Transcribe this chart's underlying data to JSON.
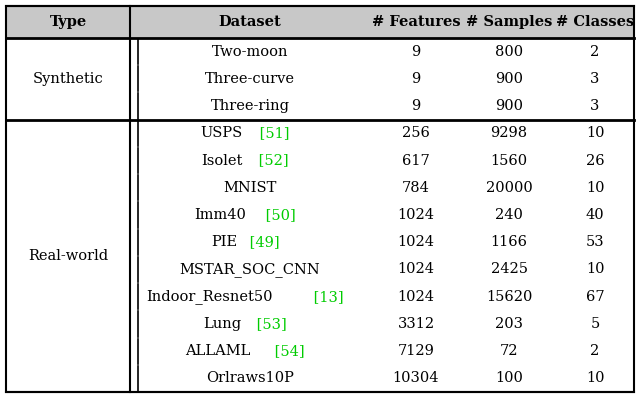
{
  "header": [
    "Type",
    "Dataset",
    "# Features",
    "# Samples",
    "# Classes"
  ],
  "synthetic_rows": [
    {
      "dataset": "Two-moon",
      "features": "9",
      "samples": "800",
      "classes": "2",
      "ref": ""
    },
    {
      "dataset": "Three-curve",
      "features": "9",
      "samples": "900",
      "classes": "3",
      "ref": ""
    },
    {
      "dataset": "Three-ring",
      "features": "9",
      "samples": "900",
      "classes": "3",
      "ref": ""
    }
  ],
  "realworld_rows": [
    {
      "dataset": "USPS",
      "features": "256",
      "samples": "9298",
      "classes": "10",
      "ref": "51"
    },
    {
      "dataset": "Isolet",
      "features": "617",
      "samples": "1560",
      "classes": "26",
      "ref": "52"
    },
    {
      "dataset": "MNIST",
      "features": "784",
      "samples": "20000",
      "classes": "10",
      "ref": ""
    },
    {
      "dataset": "Imm40",
      "features": "1024",
      "samples": "240",
      "classes": "40",
      "ref": "50"
    },
    {
      "dataset": "PIE",
      "features": "1024",
      "samples": "1166",
      "classes": "53",
      "ref": "49"
    },
    {
      "dataset": "MSTAR_SOC_CNN",
      "features": "1024",
      "samples": "2425",
      "classes": "10",
      "ref": ""
    },
    {
      "dataset": "Indoor_Resnet50",
      "features": "1024",
      "samples": "15620",
      "classes": "67",
      "ref": "13"
    },
    {
      "dataset": "Lung",
      "features": "3312",
      "samples": "203",
      "classes": "5",
      "ref": "53"
    },
    {
      "dataset": "ALLAML",
      "features": "7129",
      "samples": "72",
      "classes": "2",
      "ref": "54"
    },
    {
      "dataset": "Orlraws10P",
      "features": "10304",
      "samples": "100",
      "classes": "10",
      "ref": ""
    }
  ],
  "ref_color": "#00cc00",
  "header_bg": "#c8c8c8",
  "border_color": "#000000",
  "text_color": "#000000",
  "bg_color": "#ffffff",
  "fontsize": 10.5,
  "header_fontsize": 10.5
}
